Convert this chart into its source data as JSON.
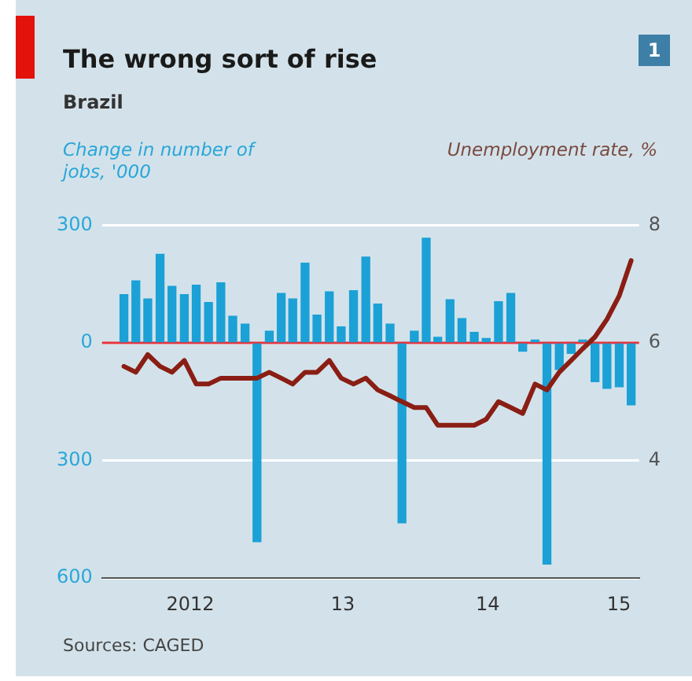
{
  "chart_data": {
    "type": "bar",
    "title": "The wrong sort of rise",
    "subtitle": "Brazil",
    "ylabel": "Change in number of jobs, '000",
    "y2label": "Unemployment rate, %",
    "annotations": [
      "1",
      "Sources: CAGED"
    ],
    "x": [
      "2012-01-16",
      "2012-02-15",
      "2012-03-16",
      "2012-04-16",
      "2012-05-16",
      "2012-06-16",
      "2012-07-16",
      "2012-08-16",
      "2012-09-16",
      "2012-10-16",
      "2012-11-16",
      "2012-12-16",
      "2013-01-16",
      "2013-02-15",
      "2013-03-16",
      "2013-04-16",
      "2013-05-16",
      "2013-06-16",
      "2013-07-16",
      "2013-08-16",
      "2013-09-16",
      "2013-10-16",
      "2013-11-16",
      "2013-12-16",
      "2014-01-16",
      "2014-02-15",
      "2014-03-16",
      "2014-04-16",
      "2014-05-16",
      "2014-06-16",
      "2014-07-16",
      "2014-08-16",
      "2014-09-16",
      "2014-10-16",
      "2014-11-16",
      "2014-12-16",
      "2015-01-16",
      "2015-02-15",
      "2015-03-16",
      "2015-04-16",
      "2015-05-16",
      "2015-06-16",
      "2015-07-16"
    ],
    "series": [
      {
        "color": "#1ba1d6",
        "values": [
          123,
          158,
          112,
          226,
          144,
          123,
          147,
          103,
          153,
          68,
          48,
          -507,
          30,
          126,
          112,
          203,
          71,
          130,
          41,
          133,
          219,
          99,
          48,
          -459,
          30,
          267,
          14,
          110,
          62,
          27,
          11,
          105,
          126,
          -21,
          7,
          -564,
          -68,
          -27,
          7,
          -99,
          -116,
          -112,
          -158
        ]
      },
      {
        "type": "line",
        "axis": "y2",
        "color": "#8a1e14",
        "values": [
          5.6,
          5.5,
          5.8,
          5.6,
          5.5,
          5.7,
          5.3,
          5.3,
          5.4,
          5.4,
          5.4,
          5.4,
          5.5,
          5.4,
          5.3,
          5.5,
          5.5,
          5.7,
          5.4,
          5.3,
          5.4,
          5.2,
          5.1,
          5.0,
          4.9,
          4.9,
          4.6,
          4.6,
          4.6,
          4.6,
          4.7,
          5.0,
          4.9,
          4.8,
          5.3,
          5.2,
          5.5,
          5.7,
          5.9,
          6.1,
          6.4,
          6.8,
          7.4
        ]
      }
    ],
    "xlim": [
      "2011-11-22",
      "2015-08-05"
    ],
    "xticks": [
      {
        "value": "2012-07-01",
        "label": "2012"
      },
      {
        "value": "2013-07-20",
        "label": "13"
      },
      {
        "value": "2014-07-20",
        "label": "14"
      },
      {
        "value": "2015-06-15",
        "label": "15"
      }
    ],
    "ylim": [
      -600,
      300
    ],
    "yticks": [
      300,
      0,
      {
        "value": -300,
        "label": "300"
      },
      {
        "value": -600,
        "label": "600"
      }
    ],
    "y2lim": [
      2,
      8
    ],
    "y2ticks": [
      8,
      6,
      4
    ],
    "grid": "y",
    "marker": "none",
    "ref_lines": [
      {
        "axis": "y",
        "value": 0,
        "color": "#e5323c"
      }
    ]
  }
}
